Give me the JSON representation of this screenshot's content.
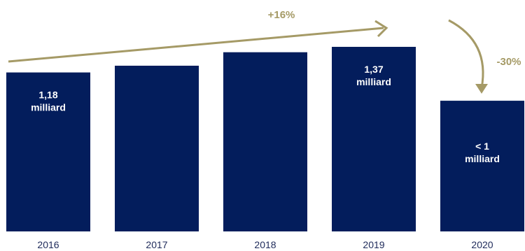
{
  "chart_data": {
    "type": "bar",
    "categories": [
      "2016",
      "2017",
      "2018",
      "2019",
      "2020"
    ],
    "values": [
      1.18,
      1.23,
      1.33,
      1.37,
      0.97
    ],
    "data_labels": [
      [
        "1,18",
        "milliard"
      ],
      null,
      null,
      [
        "1,37",
        "milliard"
      ],
      [
        "< 1",
        "milliard"
      ]
    ],
    "annotations": {
      "growth": "+16%",
      "decline": "-30%"
    },
    "ylim": [
      0,
      1.37
    ],
    "grid": false,
    "colors": {
      "bar": "#031d5c",
      "annotation": "#a59a66",
      "tick_text": "#1e2a5a"
    }
  }
}
